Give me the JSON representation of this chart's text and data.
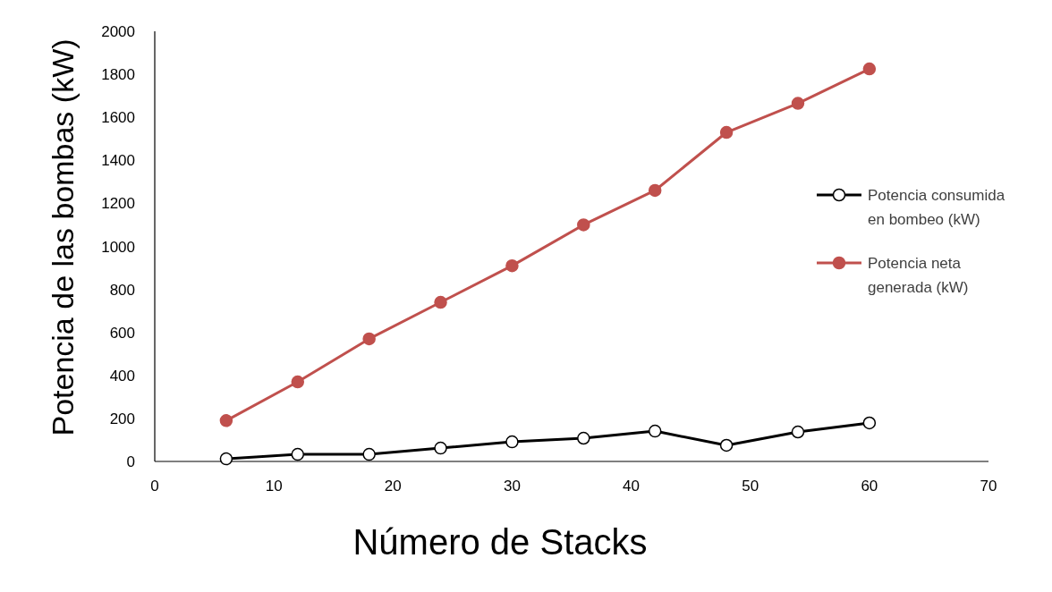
{
  "chart_data": {
    "type": "line",
    "xlabel": "Número de Stacks",
    "ylabel": "Potencia  de las bombas (kW)",
    "x": [
      6,
      12,
      18,
      24,
      30,
      36,
      42,
      48,
      54,
      60
    ],
    "series": [
      {
        "name": "Potencia consumida en bombeo (kW)",
        "color": "#000000",
        "values": [
          12,
          33,
          33,
          62,
          91,
          108,
          141,
          75,
          137,
          179
        ]
      },
      {
        "name": "Potencia neta generada (kW)",
        "color": "#c0504d",
        "values": [
          190,
          370,
          570,
          740,
          910,
          1100,
          1260,
          1530,
          1665,
          1825
        ]
      }
    ],
    "xlim": [
      0,
      70
    ],
    "xticks": [
      0,
      10,
      20,
      30,
      40,
      50,
      60,
      70
    ],
    "ylim": [
      0,
      2000
    ],
    "yticks": [
      0,
      200,
      400,
      600,
      800,
      1000,
      1200,
      1400,
      1600,
      1800,
      2000
    ],
    "grid": false,
    "legend": "right",
    "marker": "circle",
    "line_style": "solid"
  }
}
